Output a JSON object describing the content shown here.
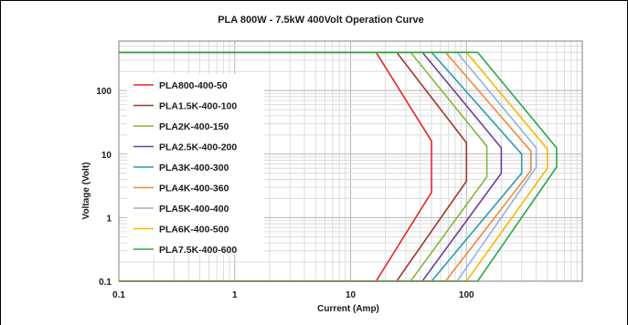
{
  "chart_data": {
    "type": "line",
    "title": "PLA 800W - 7.5kW   400Volt  Operation Curve",
    "xlabel": "Current (Amp)",
    "ylabel": "Voltage (Volt)",
    "xscale": "log",
    "yscale": "log",
    "xlim": [
      0.1,
      1000
    ],
    "ylim": [
      0.1,
      600
    ],
    "xticks": [
      "0.1",
      "1",
      "10",
      "100"
    ],
    "yticks": [
      "0.1",
      "1",
      "10",
      "100"
    ],
    "grid": true,
    "legend": "top-left",
    "series": [
      {
        "name": "PLA800-400-50",
        "color": "#e8232a",
        "x": [
          0.1,
          2,
          16.6,
          50,
          50,
          16.6,
          0.1
        ],
        "y": [
          400,
          400,
          400,
          16,
          2.5,
          0.1,
          0.1
        ]
      },
      {
        "name": "PLA1.5K-400-100",
        "color": "#a0352f",
        "x": [
          0.1,
          3.75,
          25,
          100,
          100,
          25,
          0.1
        ],
        "y": [
          400,
          400,
          400,
          15,
          3.75,
          0.1,
          0.1
        ]
      },
      {
        "name": "PLA2K-400-150",
        "color": "#86b43c",
        "x": [
          0.1,
          5,
          33,
          150,
          150,
          33,
          0.1
        ],
        "y": [
          400,
          400,
          400,
          13.3,
          4.4,
          0.1,
          0.1
        ]
      },
      {
        "name": "PLA2.5K-400-200",
        "color": "#6a3f9a",
        "x": [
          0.1,
          6.25,
          41.6,
          200,
          200,
          41.6,
          0.1
        ],
        "y": [
          400,
          400,
          400,
          12.5,
          5,
          0.1,
          0.1
        ]
      },
      {
        "name": "PLA3K-400-300",
        "color": "#2a9bb0",
        "x": [
          0.1,
          7.5,
          50,
          300,
          300,
          50,
          0.1
        ],
        "y": [
          400,
          400,
          400,
          10,
          5,
          0.1,
          0.1
        ]
      },
      {
        "name": "PLA4K-400-360",
        "color": "#f08a38",
        "x": [
          0.1,
          10,
          66,
          360,
          360,
          66,
          0.1
        ],
        "y": [
          400,
          400,
          400,
          11.1,
          5.5,
          0.1,
          0.1
        ]
      },
      {
        "name": "PLA5K-400-400",
        "color": "#94b1de",
        "x": [
          0.1,
          12.5,
          83,
          400,
          400,
          83,
          0.1
        ],
        "y": [
          400,
          400,
          400,
          12.5,
          6.2,
          0.1,
          0.1
        ]
      },
      {
        "name": "PLA6K-400-500",
        "color": "#f6b800",
        "x": [
          0.1,
          15,
          100,
          500,
          500,
          100,
          0.1
        ],
        "y": [
          400,
          400,
          400,
          12,
          6,
          0.1,
          0.1
        ]
      },
      {
        "name": "PLA7.5K-400-600",
        "color": "#28a64c",
        "x": [
          0.1,
          18.75,
          125,
          600,
          600,
          125,
          0.1
        ],
        "y": [
          400,
          400,
          400,
          12.5,
          6.25,
          0.1,
          0.1
        ]
      }
    ]
  }
}
